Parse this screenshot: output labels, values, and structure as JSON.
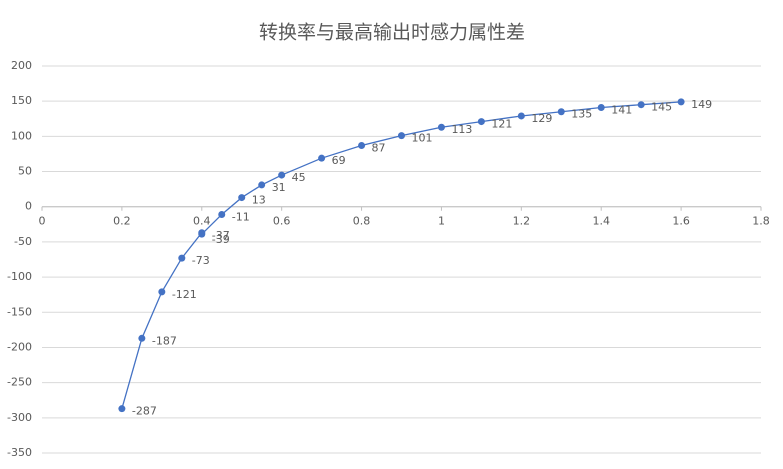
{
  "chart_data": {
    "type": "scatter",
    "title": "转换率与最高输出时感力属性差",
    "x": [
      0.2,
      0.25,
      0.3,
      0.35,
      0.4,
      0.4,
      0.45,
      0.5,
      0.55,
      0.6,
      0.7,
      0.8,
      0.9,
      1.0,
      1.1,
      1.2,
      1.3,
      1.4,
      1.5,
      1.6
    ],
    "values": [
      -287,
      -187,
      -121,
      -73,
      -37,
      -39,
      -11,
      13,
      31,
      45,
      69,
      87,
      101,
      113,
      121,
      129,
      135,
      141,
      145,
      149
    ],
    "color": "#4472c4",
    "xlim": [
      0,
      1.8
    ],
    "xticks": [
      0,
      0.2,
      0.4,
      0.6,
      0.8,
      1,
      1.2,
      1.4,
      1.6,
      1.8
    ],
    "ylim": [
      -350,
      200
    ],
    "yticks": [
      -350,
      -300,
      -250,
      -200,
      -150,
      -100,
      -50,
      0,
      50,
      100,
      150,
      200
    ],
    "grid": true
  }
}
